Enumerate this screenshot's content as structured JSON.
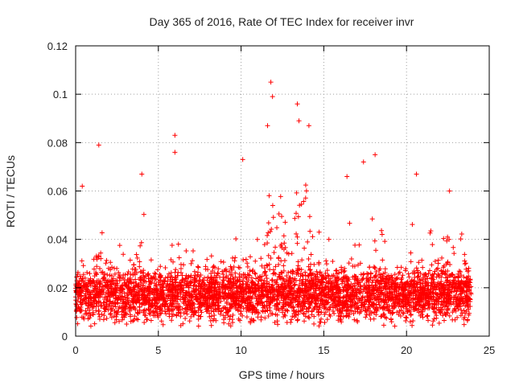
{
  "chart_data": {
    "type": "scatter",
    "title": "Day 365 of 2016, Rate Of TEC Index for receiver invr",
    "xlabel": "GPS time / hours",
    "ylabel": "ROTI / TECUs",
    "xlim": [
      0,
      25
    ],
    "ylim": [
      0,
      0.12
    ],
    "xticks": [
      0,
      5,
      10,
      15,
      20,
      25
    ],
    "yticks": [
      0,
      0.02,
      0.04,
      0.06,
      0.08,
      0.1,
      0.12
    ],
    "xtick_labels": [
      "0",
      "5",
      "10",
      "15",
      "20",
      "25"
    ],
    "ytick_labels": [
      "0",
      "0.02",
      "0.04",
      "0.06",
      "0.08",
      "0.1",
      "0.12"
    ],
    "grid": true,
    "marker": "+",
    "series_color": "#ff0000",
    "point_count_estimate": 4000,
    "notable_points": [
      {
        "x": 0.4,
        "y": 0.062
      },
      {
        "x": 1.4,
        "y": 0.079
      },
      {
        "x": 4.0,
        "y": 0.067
      },
      {
        "x": 6.0,
        "y": 0.083
      },
      {
        "x": 6.0,
        "y": 0.076
      },
      {
        "x": 10.1,
        "y": 0.073
      },
      {
        "x": 11.8,
        "y": 0.105
      },
      {
        "x": 11.9,
        "y": 0.099
      },
      {
        "x": 11.6,
        "y": 0.087
      },
      {
        "x": 13.4,
        "y": 0.096
      },
      {
        "x": 13.5,
        "y": 0.089
      },
      {
        "x": 14.1,
        "y": 0.087
      },
      {
        "x": 16.4,
        "y": 0.066
      },
      {
        "x": 17.4,
        "y": 0.072
      },
      {
        "x": 18.1,
        "y": 0.075
      },
      {
        "x": 20.6,
        "y": 0.067
      },
      {
        "x": 22.6,
        "y": 0.06
      }
    ],
    "x_data_end": 23.9
  }
}
